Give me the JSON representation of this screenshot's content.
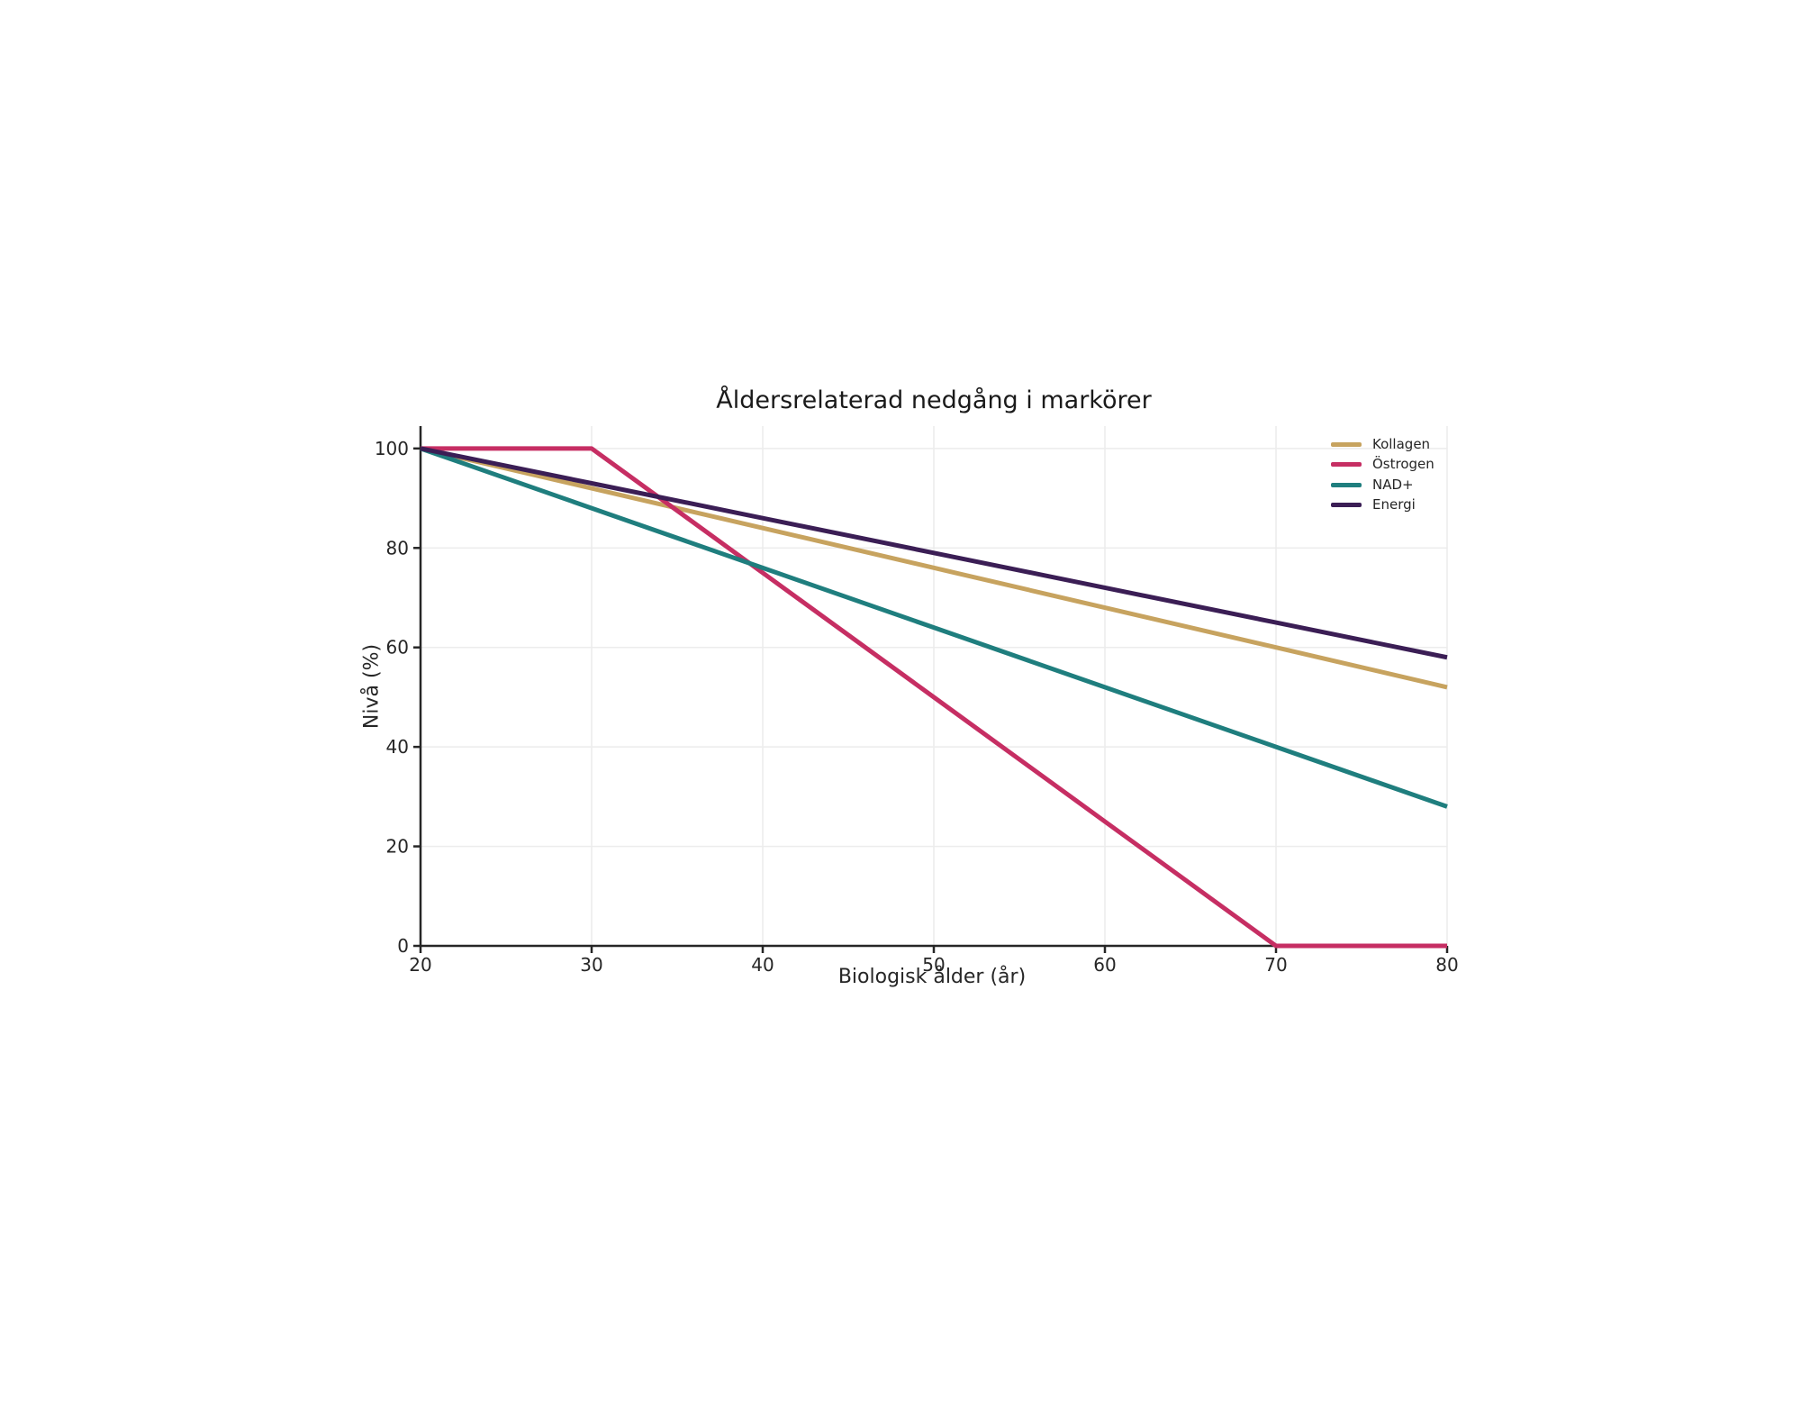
{
  "chart_data": {
    "type": "line",
    "title": "Åldersrelaterad nedgång i markörer",
    "xlabel": "Biologisk ålder (år)",
    "ylabel": "Nivå (%)",
    "x": [
      20,
      30,
      40,
      50,
      60,
      70,
      80
    ],
    "series": [
      {
        "name": "Kollagen",
        "color": "#C7A35F",
        "values": [
          100,
          92,
          84,
          76,
          68,
          60,
          52
        ]
      },
      {
        "name": "Östrogen",
        "color": "#C62E63",
        "values": [
          100,
          100,
          75,
          50,
          25,
          0,
          0
        ]
      },
      {
        "name": "NAD+",
        "color": "#1F7E7E",
        "values": [
          100,
          88,
          76,
          64,
          52,
          40,
          28
        ]
      },
      {
        "name": "Energi",
        "color": "#3B1E55",
        "values": [
          100,
          93,
          86,
          79,
          72,
          65,
          58
        ]
      }
    ],
    "xticks": [
      20,
      30,
      40,
      50,
      60,
      70,
      80
    ],
    "yticks": [
      0,
      20,
      40,
      60,
      80,
      100
    ],
    "xlim": [
      20,
      80
    ],
    "ylim": [
      0,
      104.5
    ],
    "grid": true,
    "legend_position": "upper right",
    "style": {
      "grid_color": "#ECECEC",
      "axis_color": "#262626",
      "text_color": "#262626",
      "background": "#FFFFFF"
    }
  }
}
